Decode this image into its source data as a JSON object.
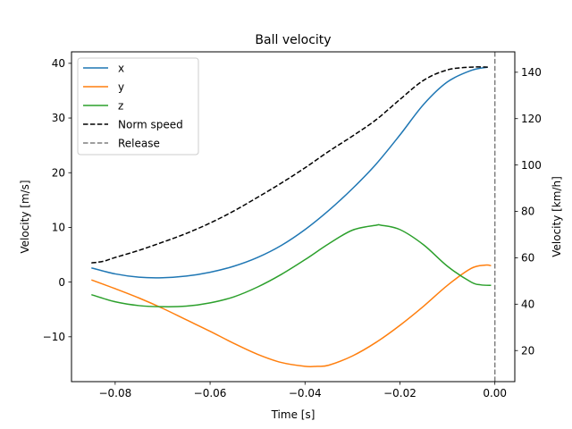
{
  "chart_data": {
    "type": "line",
    "title": "Ball velocity",
    "xlabel": "Time [s]",
    "ylabel": "Velocity [m/s]",
    "ylabel_right": "Velocity [km/h]",
    "xlim": [
      -0.0892,
      0.0042
    ],
    "ylim": [
      -18.2,
      42.1
    ],
    "ylim_right": [
      6.6,
      148.8
    ],
    "xticks": [
      -0.08,
      -0.06,
      -0.04,
      -0.02,
      0.0
    ],
    "xtick_labels": [
      "−0.08",
      "−0.06",
      "−0.04",
      "−0.02",
      "0.00"
    ],
    "yticks": [
      -10,
      0,
      10,
      20,
      30,
      40
    ],
    "ytick_labels": [
      "−10",
      "0",
      "10",
      "20",
      "30",
      "40"
    ],
    "yticks_right": [
      20,
      40,
      60,
      80,
      100,
      120,
      140
    ],
    "ytick_labels_right": [
      "20",
      "40",
      "60",
      "80",
      "100",
      "120",
      "140"
    ],
    "grid": false,
    "legend_position": "top-left",
    "series": [
      {
        "name": "x",
        "color": "#1f77b4",
        "style": "solid",
        "x": [
          -0.085,
          -0.08,
          -0.075,
          -0.07,
          -0.065,
          -0.06,
          -0.055,
          -0.05,
          -0.045,
          -0.04,
          -0.035,
          -0.03,
          -0.025,
          -0.02,
          -0.015,
          -0.01,
          -0.005,
          -0.0015
        ],
        "y": [
          2.6,
          1.5,
          0.9,
          0.8,
          1.1,
          1.8,
          2.9,
          4.5,
          6.7,
          9.6,
          13.1,
          17.1,
          21.6,
          26.9,
          32.5,
          36.6,
          38.7,
          39.3
        ]
      },
      {
        "name": "y",
        "color": "#ff7f0e",
        "style": "solid",
        "x": [
          -0.085,
          -0.08,
          -0.075,
          -0.07,
          -0.065,
          -0.06,
          -0.055,
          -0.05,
          -0.045,
          -0.04,
          -0.0375,
          -0.035,
          -0.03,
          -0.025,
          -0.02,
          -0.015,
          -0.01,
          -0.005,
          -0.002,
          -0.0008
        ],
        "y": [
          0.4,
          -1.2,
          -2.9,
          -4.8,
          -6.9,
          -9.0,
          -11.2,
          -13.2,
          -14.7,
          -15.4,
          -15.4,
          -15.2,
          -13.5,
          -11.0,
          -7.9,
          -4.4,
          -0.6,
          2.5,
          3.1,
          3.0
        ]
      },
      {
        "name": "z",
        "color": "#2ca02c",
        "style": "solid",
        "x": [
          -0.085,
          -0.08,
          -0.075,
          -0.07,
          -0.065,
          -0.06,
          -0.055,
          -0.05,
          -0.045,
          -0.04,
          -0.035,
          -0.03,
          -0.025,
          -0.024,
          -0.02,
          -0.015,
          -0.01,
          -0.005,
          -0.003,
          -0.0008
        ],
        "y": [
          -2.3,
          -3.6,
          -4.3,
          -4.5,
          -4.4,
          -3.8,
          -2.7,
          -0.9,
          1.4,
          4.1,
          7.0,
          9.5,
          10.4,
          10.4,
          9.6,
          6.8,
          2.9,
          0.0,
          -0.5,
          -0.6
        ]
      },
      {
        "name": "Norm speed",
        "color": "#000000",
        "style": "dashed",
        "x": [
          -0.085,
          -0.0825,
          -0.08,
          -0.075,
          -0.07,
          -0.065,
          -0.06,
          -0.055,
          -0.05,
          -0.045,
          -0.04,
          -0.035,
          -0.03,
          -0.025,
          -0.02,
          -0.015,
          -0.01,
          -0.005,
          -0.0015
        ],
        "y": [
          3.5,
          3.8,
          4.5,
          5.8,
          7.3,
          8.9,
          10.8,
          13.0,
          15.5,
          18.1,
          20.9,
          23.9,
          26.7,
          29.7,
          33.4,
          36.9,
          38.8,
          39.3,
          39.3
        ]
      }
    ],
    "vlines": [
      {
        "name": "Release",
        "x": 0.0,
        "color": "#7f7f7f",
        "style": "dashed"
      }
    ]
  }
}
